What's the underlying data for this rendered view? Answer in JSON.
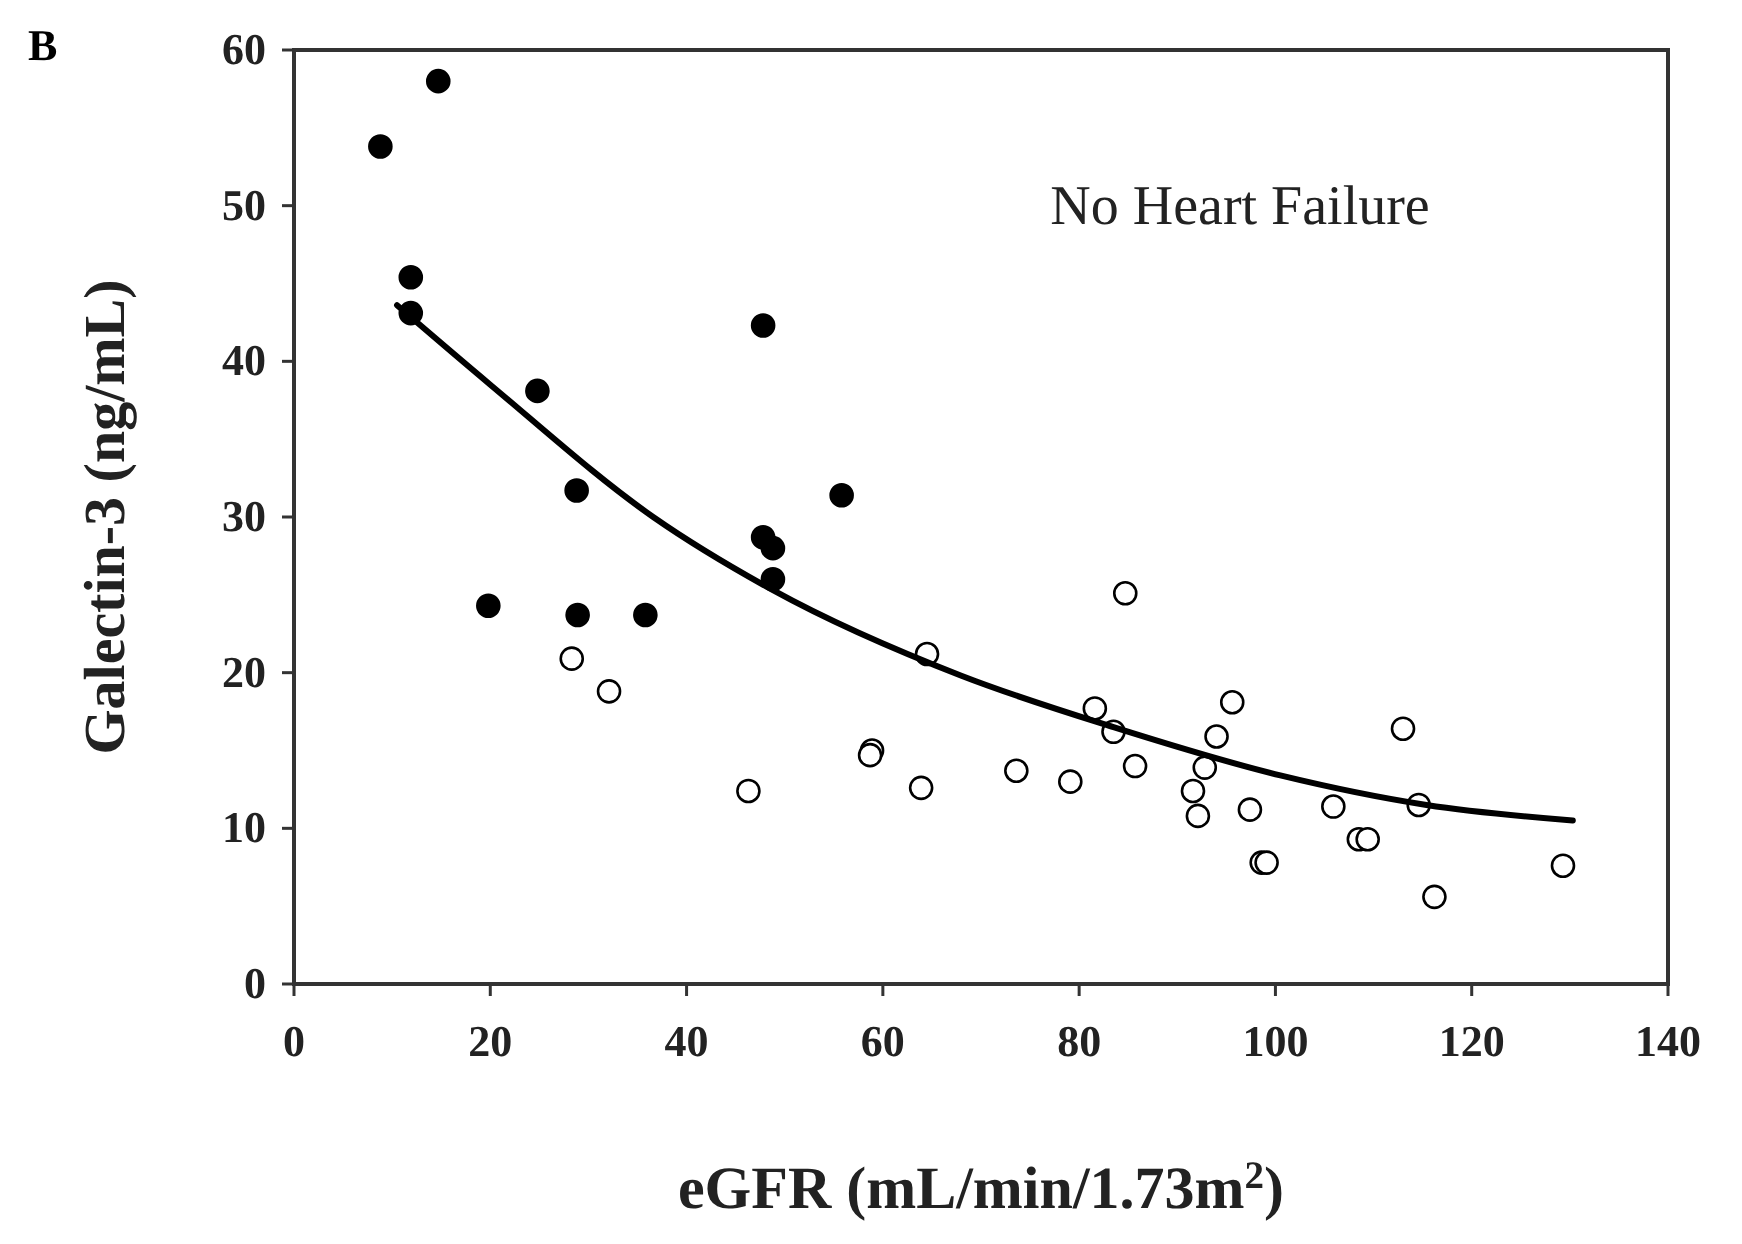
{
  "chart_data": {
    "type": "scatter",
    "title": "B",
    "xlabel": "eGFR (mL/min/1.73m$^{2}$)",
    "ylabel": "Galectin-3 (ng/mL)",
    "annotations": [
      "No Heart Failure"
    ],
    "xlim": [
      0,
      140
    ],
    "xticks": [
      0,
      20,
      40,
      60,
      80,
      100,
      120,
      140
    ],
    "ylim": [
      0,
      60
    ],
    "yticks": [
      0,
      10,
      20,
      30,
      40,
      50,
      60
    ],
    "grid": false,
    "marker": "circle",
    "series": [
      {
        "color": "#000000",
        "x": [
          14.7,
          8.8,
          11.9,
          11.9,
          47.8,
          24.8,
          28.8,
          55.8,
          47.8,
          48.8,
          48.8,
          19.8,
          28.9,
          35.8
        ],
        "values": [
          58.0,
          53.8,
          45.4,
          43.1,
          42.3,
          38.1,
          31.7,
          31.4,
          28.7,
          28.0,
          26.0,
          24.3,
          23.7,
          23.7
        ]
      },
      {
        "color": "#ffffff",
        "x": [
          28.3,
          32.1,
          46.3,
          58.9,
          58.7,
          63.9,
          64.5,
          84.7,
          73.6,
          79.1,
          81.6,
          83.5,
          85.7,
          95.6,
          94.0,
          92.8,
          91.6,
          92.1,
          97.4,
          98.6,
          99.1,
          105.9,
          108.5,
          109.4,
          113.0,
          114.6,
          116.2,
          129.3
        ],
        "values": [
          20.9,
          18.8,
          12.4,
          15.0,
          14.7,
          12.6,
          21.2,
          25.1,
          13.7,
          13.0,
          17.7,
          16.2,
          14.0,
          18.1,
          15.9,
          13.9,
          12.4,
          10.8,
          11.2,
          7.8,
          7.8,
          11.4,
          9.3,
          9.3,
          16.4,
          11.5,
          5.6,
          7.6
        ]
      },
      {
        "type": "line",
        "color": "#000000",
        "marker": "none",
        "line_style": "solid",
        "x": [
          10.5,
          20,
          36.6,
          48.8,
          68,
          83.5,
          100.5,
          115.4,
          130.3
        ],
        "values": [
          43.6,
          38.5,
          30.0,
          25.3,
          19.8,
          16.5,
          13.4,
          11.5,
          10.5
        ]
      }
    ]
  }
}
